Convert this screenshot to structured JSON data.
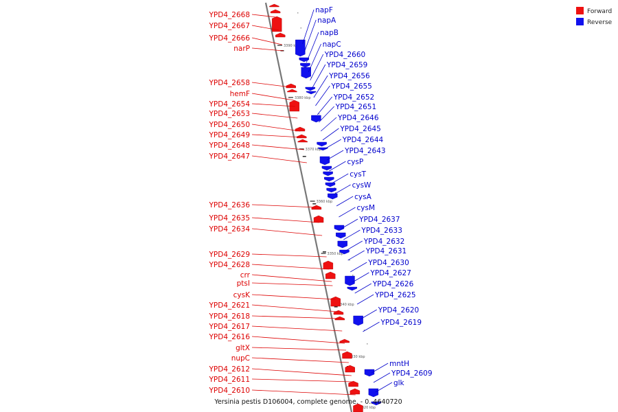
{
  "caption": "Yersinia pestis D106004, complete genome. - 0..4640720",
  "legend": [
    {
      "label": "Forward",
      "color": "#ee1111"
    },
    {
      "label": "Reverse",
      "color": "#1111ee"
    }
  ],
  "colors": {
    "forward": "#ee1111",
    "reverse": "#1111ee",
    "backbone": "#777777",
    "label_forward": "#dd0000",
    "label_reverse": "#0000cc"
  },
  "scale_ticks": [
    "3390 kbp",
    "3380 kbp",
    "3370 kbp",
    "3360 kbp",
    "3350 kbp",
    "3340 kbp",
    "3330 kbp",
    "3320 kbp"
  ],
  "forward_labels": [
    "YPD4_2668",
    "YPD4_2667",
    "YPD4_2666",
    "narP",
    "YPD4_2658",
    "hemF",
    "YPD4_2654",
    "YPD4_2653",
    "YPD4_2650",
    "YPD4_2649",
    "YPD4_2648",
    "YPD4_2647",
    "YPD4_2636",
    "YPD4_2635",
    "YPD4_2634",
    "YPD4_2629",
    "YPD4_2628",
    "crr",
    "ptsI",
    "cysK",
    "YPD4_2621",
    "YPD4_2618",
    "YPD4_2617",
    "YPD4_2616",
    "gltX",
    "nupC",
    "YPD4_2612",
    "YPD4_2611",
    "YPD4_2610"
  ],
  "reverse_labels": [
    "napF",
    "napA",
    "napB",
    "napC",
    "YPD4_2660",
    "YPD4_2659",
    "YPD4_2656",
    "YPD4_2655",
    "YPD4_2652",
    "YPD4_2651",
    "YPD4_2646",
    "YPD4_2645",
    "YPD4_2644",
    "YPD4_2643",
    "cysP",
    "cysT",
    "cysW",
    "cysA",
    "cysM",
    "YPD4_2637",
    "YPD4_2633",
    "YPD4_2632",
    "YPD4_2631",
    "YPD4_2630",
    "YPD4_2627",
    "YPD4_2626",
    "YPD4_2625",
    "YPD4_2620",
    "YPD4_2619",
    "mntH",
    "YPD4_2609",
    "glk"
  ]
}
